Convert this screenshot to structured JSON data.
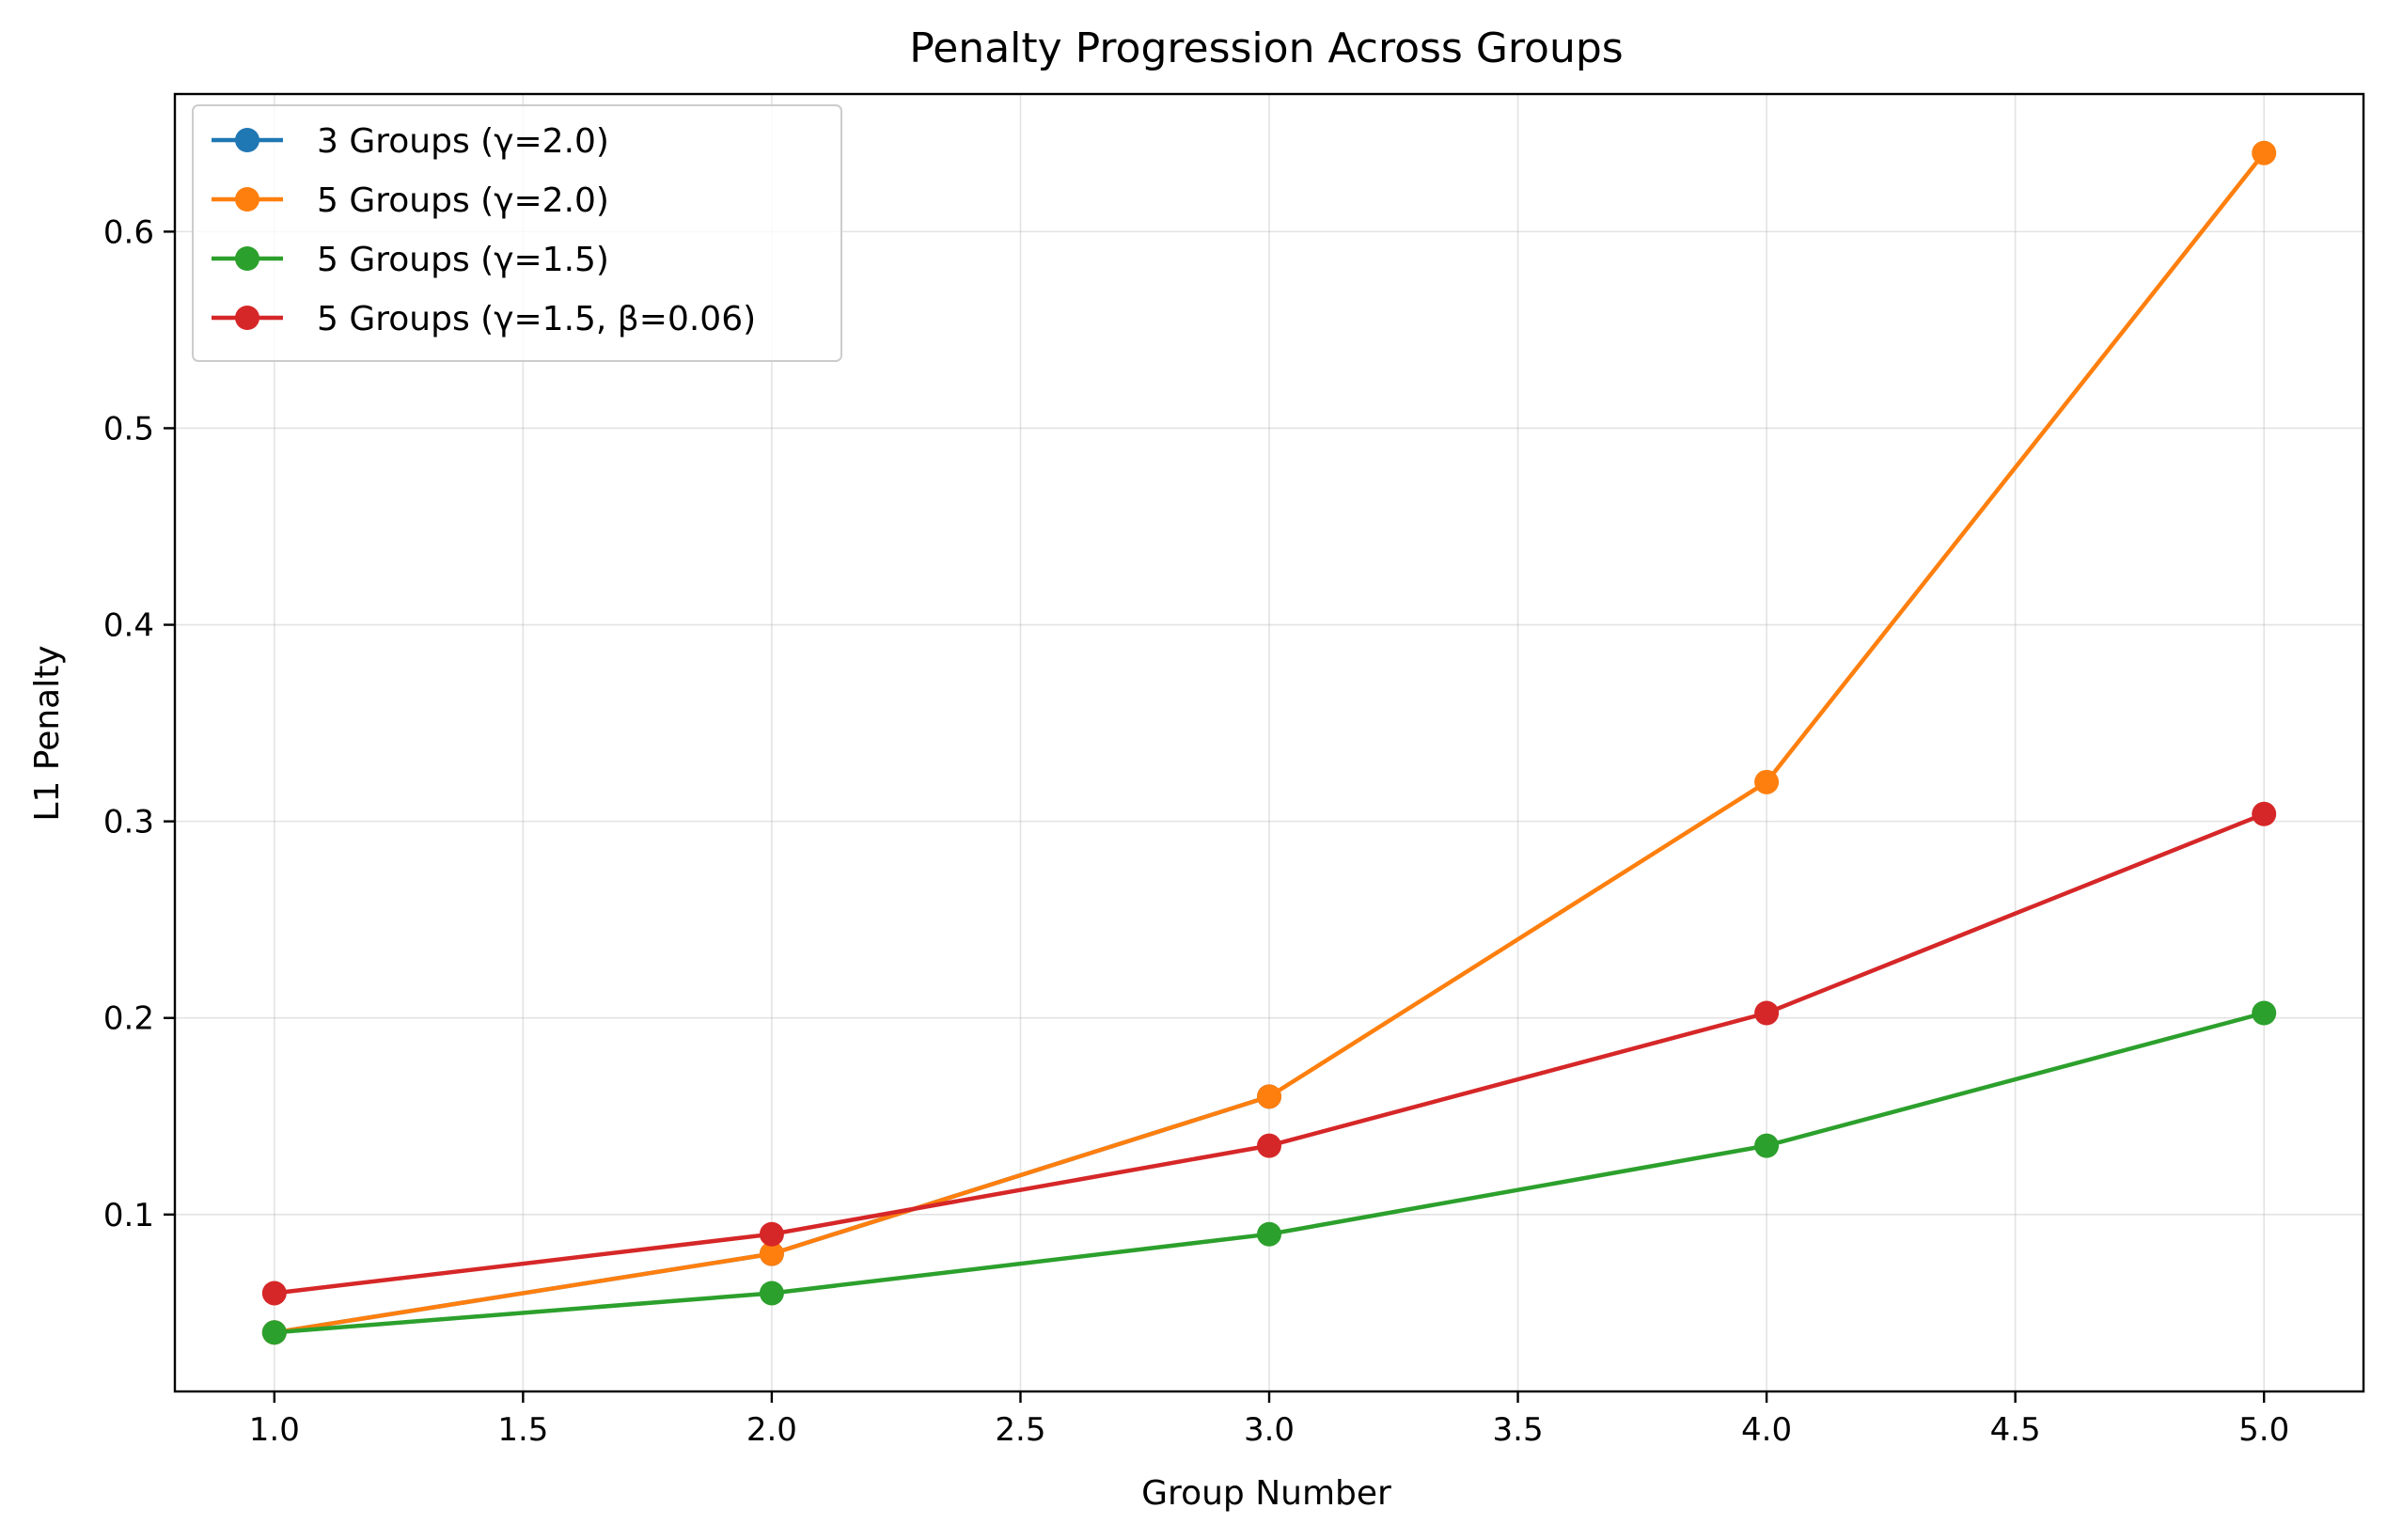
{
  "chart_data": {
    "type": "line",
    "title": "Penalty Progression Across Groups",
    "xlabel": "Group Number",
    "ylabel": "L1 Penalty",
    "xlim": [
      0.8,
      5.2
    ],
    "ylim": [
      0.01,
      0.67
    ],
    "x_ticks": [
      1.0,
      1.5,
      2.0,
      2.5,
      3.0,
      3.5,
      4.0,
      4.5,
      5.0
    ],
    "x_tick_labels": [
      "1.0",
      "1.5",
      "2.0",
      "2.5",
      "3.0",
      "3.5",
      "4.0",
      "4.5",
      "5.0"
    ],
    "y_ticks": [
      0.1,
      0.2,
      0.3,
      0.4,
      0.5,
      0.6
    ],
    "y_tick_labels": [
      "0.1",
      "0.2",
      "0.3",
      "0.4",
      "0.5",
      "0.6"
    ],
    "grid": true,
    "legend_position": "top-left",
    "series": [
      {
        "name": "3 Groups (γ=2.0)",
        "color": "#1f77b4",
        "x": [
          1,
          2,
          3
        ],
        "y": [
          0.04,
          0.08,
          0.16
        ]
      },
      {
        "name": "5 Groups (γ=2.0)",
        "color": "#ff7f0e",
        "x": [
          1,
          2,
          3,
          4,
          5
        ],
        "y": [
          0.04,
          0.08,
          0.16,
          0.32,
          0.64
        ]
      },
      {
        "name": "5 Groups (γ=1.5)",
        "color": "#2ca02c",
        "x": [
          1,
          2,
          3,
          4,
          5
        ],
        "y": [
          0.04,
          0.06,
          0.09,
          0.135,
          0.2025
        ]
      },
      {
        "name": "5 Groups (γ=1.5, β=0.06)",
        "color": "#d62728",
        "x": [
          1,
          2,
          3,
          4,
          5
        ],
        "y": [
          0.06,
          0.09,
          0.135,
          0.2025,
          0.30375
        ]
      }
    ]
  }
}
